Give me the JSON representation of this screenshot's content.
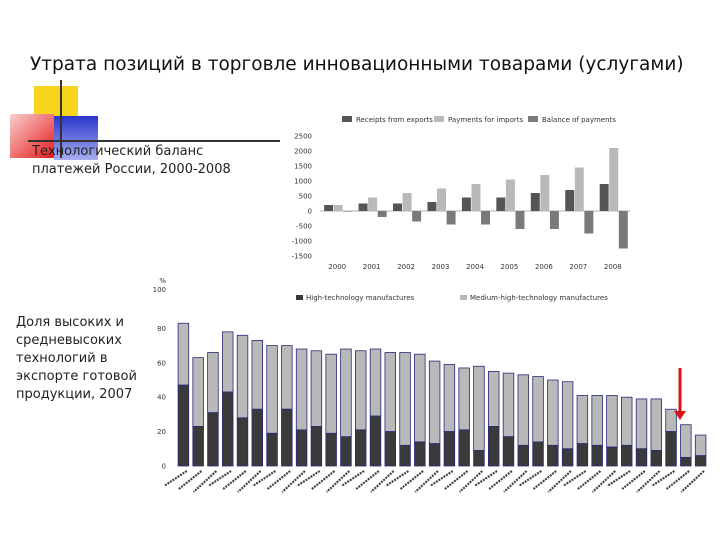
{
  "slide": {
    "title": "Утрата позиций в торговле инновационными товарами (услугами)",
    "caption_top": "Технологический баланс платежей России, 2000-2008",
    "caption_bottom": "Доля высоких и средневысоких технологий в экспорте готовой продукции, 2007"
  },
  "colors": {
    "dark": "#555555",
    "light": "#b9b9b9",
    "medium": "#7a7a7a",
    "bar_outline": "#2a2a7a",
    "arrow": "#dd1111"
  },
  "chart_data": [
    {
      "type": "bar",
      "categories": [
        "2000",
        "2001",
        "2002",
        "2003",
        "2004",
        "2005",
        "2006",
        "2007",
        "2008"
      ],
      "series": [
        {
          "name": "Receipts from exports",
          "values": [
            200,
            250,
            250,
            300,
            450,
            450,
            600,
            700,
            900
          ]
        },
        {
          "name": "Payments for imports",
          "values": [
            200,
            450,
            600,
            750,
            900,
            1050,
            1200,
            1450,
            2100
          ]
        },
        {
          "name": "Balance of payments",
          "values": [
            0,
            -200,
            -350,
            -450,
            -450,
            -600,
            -600,
            -750,
            -1250
          ]
        }
      ],
      "ylim": [
        -1500,
        2500
      ],
      "yticks": [
        "2500",
        "2000",
        "1500",
        "1000",
        "500",
        "0",
        "-500",
        "-1000",
        "-1500"
      ],
      "legend": "top"
    },
    {
      "type": "bar",
      "stacked": true,
      "unit_label": "% 100",
      "yticks": [
        "0",
        "20",
        "40",
        "60",
        "80"
      ],
      "ylim": [
        0,
        100
      ],
      "series": [
        {
          "name": "High-technology manufactures",
          "values": [
            47,
            23,
            31,
            43,
            28,
            33,
            19,
            33,
            21,
            23,
            19,
            17,
            21,
            29,
            20,
            12,
            14,
            13,
            20,
            21,
            9,
            23,
            17,
            12,
            14,
            12,
            10,
            13,
            12,
            11,
            12,
            10,
            9,
            20,
            5,
            6
          ]
        },
        {
          "name": "Medium-high-technology manufactures",
          "values": [
            36,
            40,
            35,
            35,
            48,
            40,
            51,
            37,
            47,
            44,
            46,
            51,
            46,
            39,
            46,
            54,
            51,
            48,
            39,
            36,
            49,
            32,
            37,
            41,
            38,
            38,
            39,
            28,
            29,
            30,
            28,
            29,
            30,
            13,
            19,
            12
          ]
        }
      ],
      "legend": "top"
    }
  ]
}
